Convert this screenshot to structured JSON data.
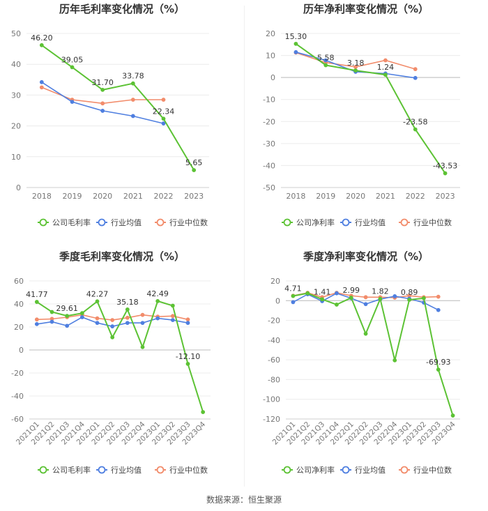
{
  "footer": "数据来源：恒生聚源",
  "colors": {
    "company": "#5cc234",
    "avg": "#4f7fe0",
    "median": "#f28c6b"
  },
  "chart_data": [
    {
      "type": "line",
      "title": "历年毛利率变化情况（%）",
      "categories": [
        "2018",
        "2019",
        "2020",
        "2021",
        "2022",
        "2023"
      ],
      "ylim": [
        0,
        50
      ],
      "yticks": [
        0,
        10,
        20,
        30,
        40,
        50
      ],
      "grid": true,
      "legend_position": "bottom",
      "series": [
        {
          "name": "公司毛利率",
          "color": "#5cc234",
          "values": [
            46.2,
            39.05,
            31.7,
            33.78,
            22.34,
            5.65
          ],
          "labels": [
            "46.20",
            "39.05",
            "31.70",
            "33.78",
            "22.34",
            "5.65"
          ]
        },
        {
          "name": "行业均值",
          "color": "#4f7fe0",
          "values": [
            34.2,
            27.8,
            24.9,
            23.2,
            20.8,
            null
          ]
        },
        {
          "name": "行业中位数",
          "color": "#f28c6b",
          "values": [
            32.5,
            28.5,
            27.3,
            28.5,
            28.5,
            null
          ]
        }
      ]
    },
    {
      "type": "line",
      "title": "历年净利率变化情况（%）",
      "categories": [
        "2018",
        "2019",
        "2020",
        "2021",
        "2022",
        "2023"
      ],
      "ylim": [
        -50,
        20
      ],
      "yticks": [
        -50,
        -40,
        -30,
        -20,
        -10,
        0,
        10,
        20
      ],
      "grid": true,
      "legend_position": "bottom",
      "series": [
        {
          "name": "公司净利率",
          "color": "#5cc234",
          "values": [
            15.3,
            5.58,
            3.18,
            1.24,
            -23.58,
            -43.53
          ],
          "labels": [
            "15.30",
            "5.58",
            "3.18",
            "1.24",
            "-23.58",
            "-43.53"
          ]
        },
        {
          "name": "行业均值",
          "color": "#4f7fe0",
          "values": [
            11.5,
            7.8,
            2.6,
            1.8,
            -0.2,
            null
          ]
        },
        {
          "name": "行业中位数",
          "color": "#f28c6b",
          "values": [
            11.3,
            6.8,
            4.8,
            7.8,
            3.8,
            null
          ]
        }
      ]
    },
    {
      "type": "line",
      "title": "季度毛利率变化情况（%）",
      "categories": [
        "2021Q1",
        "2021Q2",
        "2021Q3",
        "2021Q4",
        "2022Q1",
        "2022Q2",
        "2022Q3",
        "2022Q4",
        "2023Q1",
        "2023Q2",
        "2023Q3",
        "2023Q4"
      ],
      "ylim": [
        -60,
        60
      ],
      "yticks": [
        -60,
        -40,
        -20,
        0,
        20,
        40,
        60
      ],
      "grid": true,
      "legend_position": "bottom",
      "series": [
        {
          "name": "公司毛利率",
          "color": "#5cc234",
          "values": [
            41.77,
            33.0,
            29.61,
            32.0,
            42.27,
            11.0,
            35.18,
            2.5,
            42.49,
            38.5,
            -12.1,
            -54.0
          ],
          "labels": [
            "41.77",
            "",
            "29.61",
            "",
            "42.27",
            "",
            "35.18",
            "",
            "42.49",
            "",
            "-12.10",
            ""
          ]
        },
        {
          "name": "行业均值",
          "color": "#4f7fe0",
          "values": [
            22.5,
            24.5,
            21.0,
            28.5,
            23.5,
            20.5,
            23.5,
            23.5,
            27.5,
            26.0,
            23.5,
            null
          ]
        },
        {
          "name": "行业中位数",
          "color": "#f28c6b",
          "values": [
            26.5,
            27.0,
            28.5,
            30.5,
            27.5,
            26.0,
            28.0,
            30.5,
            29.0,
            29.5,
            26.5,
            null
          ]
        }
      ]
    },
    {
      "type": "line",
      "title": "季度净利率变化情况（%）",
      "categories": [
        "2021Q1",
        "2021Q2",
        "2021Q3",
        "2021Q4",
        "2022Q1",
        "2022Q2",
        "2022Q3",
        "2022Q4",
        "2023Q1",
        "2023Q2",
        "2023Q3",
        "2023Q4"
      ],
      "ylim": [
        -120,
        20
      ],
      "yticks": [
        -120,
        -100,
        -80,
        -60,
        -40,
        -20,
        0,
        20
      ],
      "grid": true,
      "legend_position": "bottom",
      "series": [
        {
          "name": "公司净利率",
          "color": "#5cc234",
          "values": [
            4.71,
            7.5,
            1.41,
            -4.0,
            2.99,
            -33.5,
            1.82,
            -60.5,
            0.89,
            2.5,
            -69.93,
            -116.5
          ],
          "labels": [
            "4.71",
            "",
            "1.41",
            "",
            "2.99",
            "",
            "1.82",
            "",
            "0.89",
            "",
            "-69.93",
            ""
          ]
        },
        {
          "name": "行业均值",
          "color": "#4f7fe0",
          "values": [
            -1.5,
            6.5,
            -0.5,
            7.5,
            2.5,
            -3.5,
            1.5,
            4.5,
            2.0,
            -2.0,
            -9.5,
            null
          ]
        },
        {
          "name": "行业中位数",
          "color": "#f28c6b",
          "values": [
            5.0,
            8.0,
            3.5,
            8.0,
            5.0,
            3.5,
            3.5,
            3.0,
            5.0,
            3.5,
            4.0,
            null
          ]
        }
      ]
    }
  ]
}
